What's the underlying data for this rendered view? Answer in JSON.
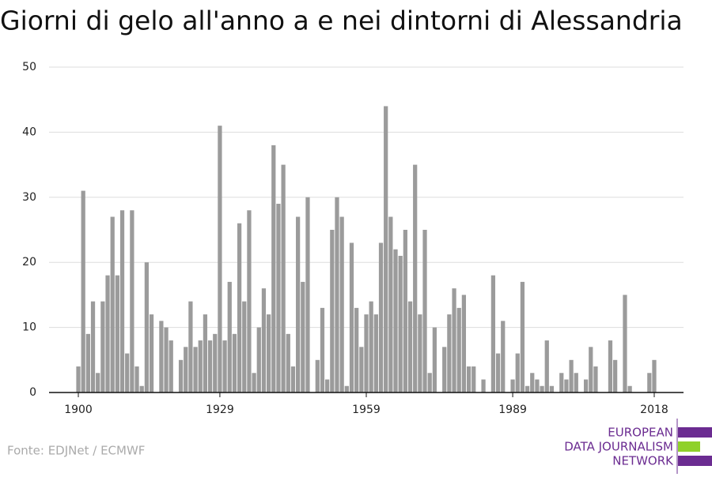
{
  "chart_data": {
    "type": "bar",
    "title": "Giorni di gelo all'anno a e nei dintorni di Alessandria",
    "x": [
      1900,
      1901,
      1902,
      1903,
      1904,
      1905,
      1906,
      1907,
      1908,
      1909,
      1910,
      1911,
      1912,
      1913,
      1914,
      1915,
      1916,
      1917,
      1918,
      1919,
      1920,
      1921,
      1922,
      1923,
      1924,
      1925,
      1926,
      1927,
      1928,
      1929,
      1930,
      1931,
      1932,
      1933,
      1934,
      1935,
      1936,
      1937,
      1938,
      1939,
      1940,
      1941,
      1942,
      1943,
      1944,
      1945,
      1946,
      1947,
      1948,
      1949,
      1950,
      1951,
      1952,
      1953,
      1954,
      1955,
      1956,
      1957,
      1958,
      1959,
      1960,
      1961,
      1962,
      1963,
      1964,
      1965,
      1966,
      1967,
      1968,
      1969,
      1970,
      1971,
      1972,
      1973,
      1974,
      1975,
      1976,
      1977,
      1978,
      1979,
      1980,
      1981,
      1982,
      1983,
      1984,
      1985,
      1986,
      1987,
      1988,
      1989,
      1990,
      1991,
      1992,
      1993,
      1994,
      1995,
      1996,
      1997,
      1998,
      1999,
      2000,
      2001,
      2002,
      2003,
      2004,
      2005,
      2006,
      2007,
      2008,
      2009,
      2010,
      2011,
      2012,
      2013,
      2014,
      2015,
      2016,
      2017,
      2018
    ],
    "values": [
      4,
      31,
      9,
      14,
      3,
      14,
      18,
      27,
      18,
      28,
      6,
      28,
      4,
      1,
      20,
      12,
      0,
      11,
      10,
      8,
      0,
      5,
      7,
      14,
      7,
      8,
      12,
      8,
      9,
      41,
      8,
      17,
      9,
      26,
      14,
      28,
      3,
      10,
      16,
      12,
      38,
      29,
      35,
      9,
      4,
      27,
      17,
      30,
      0,
      5,
      13,
      2,
      25,
      30,
      27,
      1,
      23,
      13,
      7,
      12,
      14,
      12,
      23,
      44,
      27,
      22,
      21,
      25,
      14,
      35,
      12,
      25,
      3,
      10,
      0,
      7,
      12,
      16,
      13,
      15,
      4,
      4,
      0,
      2,
      0,
      18,
      6,
      11,
      0,
      2,
      6,
      17,
      1,
      3,
      2,
      1,
      8,
      1,
      0,
      3,
      2,
      5,
      3,
      0,
      2,
      7,
      4,
      0,
      0,
      8,
      5,
      0,
      15,
      1,
      0,
      0,
      0,
      3,
      5
    ],
    "color": "#9b9b9b",
    "xlim": [
      1894,
      2024
    ],
    "xticks": [
      1900,
      1929,
      1959,
      1989,
      2018
    ],
    "ylim": [
      0,
      50
    ],
    "yticks": [
      0,
      10,
      20,
      30,
      40,
      50
    ],
    "grid": true
  },
  "source": "Fonte: EDJNet / ECMWF",
  "logo": [
    "EUROPEAN",
    "DATA JOURNALISM",
    "NETWORK"
  ]
}
